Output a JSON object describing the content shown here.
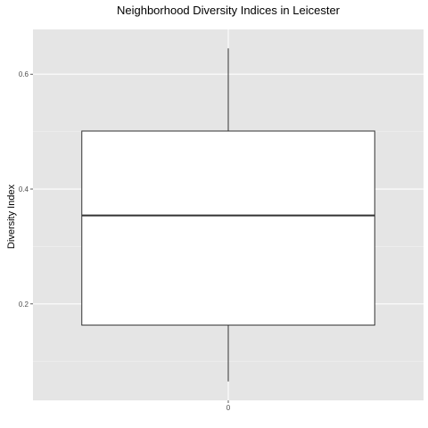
{
  "chart_data": {
    "type": "box",
    "title": "Neighborhood Diversity Indices in Leicester",
    "xlabel": "",
    "ylabel": "Diversity Index",
    "categories": [
      "0"
    ],
    "boxes": [
      {
        "category": "0",
        "min": 0.065,
        "q1": 0.163,
        "median": 0.354,
        "q3": 0.501,
        "max": 0.645
      }
    ],
    "y_ticks": [
      0.2,
      0.4,
      0.6
    ],
    "y_tick_labels": [
      "0.2",
      "0.4",
      "0.6"
    ],
    "ylim": [
      0.032,
      0.678
    ],
    "grid": true,
    "legend": "none",
    "colors": {
      "panel_background": "#e5e5e5",
      "grid_major": "#ffffff",
      "grid_minor": "#f2f2f2",
      "box_fill": "#ffffff",
      "box_stroke": "#333333"
    }
  }
}
